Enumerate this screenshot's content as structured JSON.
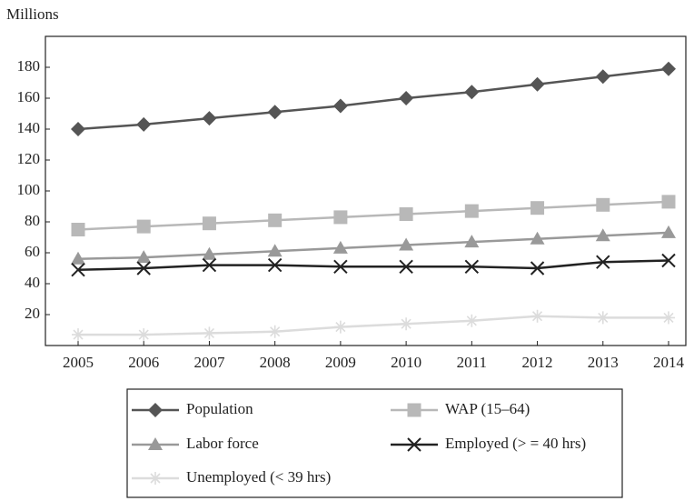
{
  "chart_data": {
    "type": "line",
    "y_label": "Millions",
    "categories": [
      "2005",
      "2006",
      "2007",
      "2008",
      "2009",
      "2010",
      "2011",
      "2012",
      "2013",
      "2014"
    ],
    "ylim": [
      0,
      200
    ],
    "yticks": [
      20,
      40,
      60,
      80,
      100,
      120,
      140,
      160,
      180
    ],
    "series": [
      {
        "name": "Population",
        "color": "#555555",
        "marker": "diamond",
        "values": [
          140,
          143,
          147,
          151,
          155,
          160,
          164,
          169,
          174,
          179
        ]
      },
      {
        "name": "WAP (15–64)",
        "color": "#b8b8b8",
        "marker": "square",
        "values": [
          75,
          77,
          79,
          81,
          83,
          85,
          87,
          89,
          91,
          93
        ]
      },
      {
        "name": "Labor force",
        "color": "#999999",
        "marker": "triangle",
        "values": [
          56,
          57,
          59,
          61,
          63,
          65,
          67,
          69,
          71,
          73
        ]
      },
      {
        "name": "Employed (> = 40 hrs)",
        "color": "#222222",
        "marker": "x",
        "values": [
          49,
          50,
          52,
          52,
          51,
          51,
          51,
          50,
          54,
          55
        ]
      },
      {
        "name": "Unemployed (< 39 hrs)",
        "color": "#dcdcdc",
        "marker": "asterisk",
        "values": [
          7,
          7,
          8,
          9,
          12,
          14,
          16,
          19,
          18,
          18
        ]
      }
    ]
  }
}
